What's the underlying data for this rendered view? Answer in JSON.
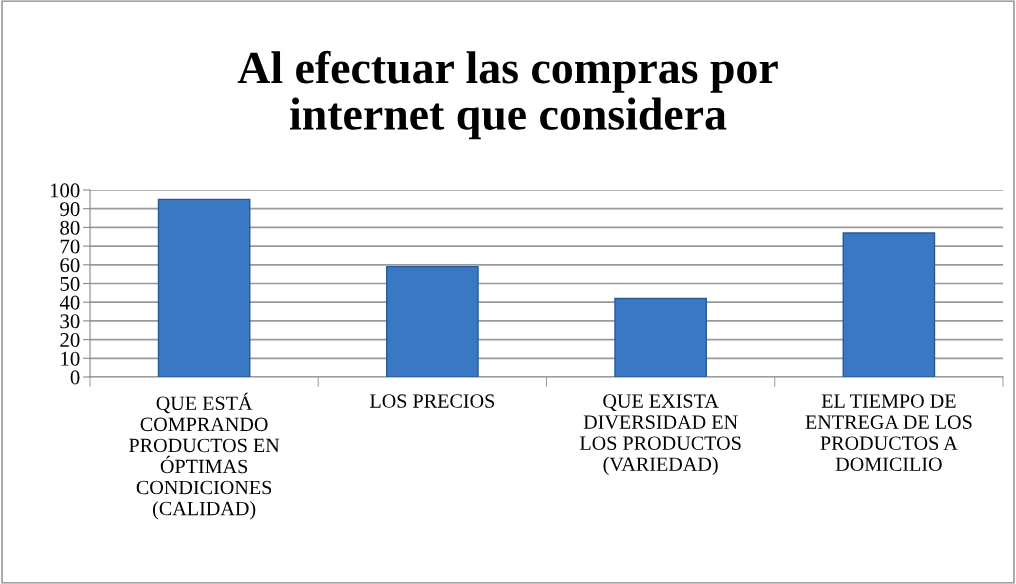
{
  "chart_data": {
    "type": "bar",
    "title": "Al efectuar las compras por\ninternet que considera",
    "categories": [
      "QUE ESTÁ\nCOMPRANDO\nPRODUCTOS EN\nÓPTIMAS\nCONDICIONES\n(CALIDAD)",
      "LOS PRECIOS",
      "QUE EXISTA\nDIVERSIDAD EN\nLOS PRODUCTOS\n(VARIEDAD)",
      "EL TIEMPO DE\nENTREGA DE LOS\nPRODUCTOS A\nDOMICILIO"
    ],
    "values": [
      95,
      59,
      42,
      77
    ],
    "color": "#3a78c4",
    "ylim": [
      0,
      100
    ],
    "yticks": [
      0,
      10,
      20,
      30,
      40,
      50,
      60,
      70,
      80,
      90,
      100
    ],
    "grid": "y"
  }
}
